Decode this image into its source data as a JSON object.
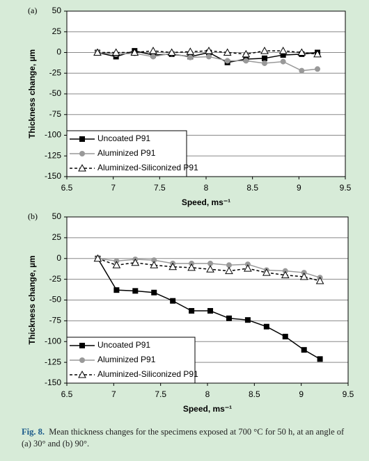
{
  "chart_data": [
    {
      "type": "line",
      "panel_label": "(a)",
      "x_label": "Speed, ms⁻¹",
      "y_label": "Thickness change, µm",
      "x": [
        6.83,
        7.03,
        7.23,
        7.43,
        7.63,
        7.83,
        8.03,
        8.23,
        8.43,
        8.63,
        8.83,
        9.03,
        9.2
      ],
      "series": [
        {
          "name": "Uncoated P91",
          "color": "#000000",
          "marker": "square",
          "dashed": false,
          "values": [
            0,
            -5,
            2,
            -3,
            -2,
            -5,
            0,
            -12,
            -8,
            -7,
            -3,
            -2,
            0
          ]
        },
        {
          "name": "Aluminized P91",
          "color": "#999999",
          "marker": "circle",
          "dashed": false,
          "values": [
            0,
            -2,
            -1,
            -5,
            -1,
            -6,
            -5,
            -10,
            -10,
            -13,
            -11,
            -22,
            -20
          ]
        },
        {
          "name": "Aluminized-Siliconized P91",
          "color": "#000000",
          "marker": "triangle",
          "dashed": true,
          "values": [
            0,
            0,
            0,
            2,
            0,
            1,
            2,
            0,
            -2,
            2,
            2,
            0,
            -2
          ]
        }
      ],
      "xlim": [
        6.5,
        9.5
      ],
      "xticks": [
        6.5,
        7,
        7.5,
        8,
        8.5,
        9,
        9.5
      ],
      "ylim": [
        -150,
        50
      ],
      "yticks": [
        50,
        25,
        0,
        -25,
        -50,
        -75,
        -100,
        -125,
        -150
      ],
      "grid": true,
      "legend": "lower left"
    },
    {
      "type": "line",
      "panel_label": "(b)",
      "x_label": "Speed, ms⁻¹",
      "y_label": "Thickness change, µm",
      "x": [
        6.83,
        7.03,
        7.23,
        7.43,
        7.63,
        7.83,
        8.03,
        8.23,
        8.43,
        8.63,
        8.83,
        9.03,
        9.2
      ],
      "series": [
        {
          "name": "Uncoated P91",
          "color": "#000000",
          "marker": "square",
          "dashed": false,
          "values": [
            0,
            -38,
            -39,
            -41,
            -51,
            -63,
            -63,
            -72,
            -74,
            -82,
            -94,
            -110,
            -121
          ]
        },
        {
          "name": "Aluminized P91",
          "color": "#999999",
          "marker": "circle",
          "dashed": false,
          "values": [
            0,
            -3,
            -1,
            -2,
            -6,
            -6,
            -6,
            -8,
            -7,
            -14,
            -15,
            -17,
            -23
          ]
        },
        {
          "name": "Aluminized-Siliconized P91",
          "color": "#000000",
          "marker": "triangle",
          "dashed": true,
          "values": [
            0,
            -8,
            -5,
            -8,
            -10,
            -11,
            -13,
            -15,
            -12,
            -17,
            -20,
            -22,
            -27
          ]
        }
      ],
      "xlim": [
        6.5,
        9.5
      ],
      "xticks": [
        6.5,
        7,
        7.5,
        8,
        8.5,
        9,
        9.5
      ],
      "ylim": [
        -150,
        50
      ],
      "yticks": [
        50,
        25,
        0,
        -25,
        -50,
        -75,
        -100,
        -125,
        -150
      ],
      "grid": true,
      "legend": "lower left"
    }
  ],
  "caption": {
    "label": "Fig. 8.",
    "text": "Mean thickness changes for the specimens exposed at 700 °C for 50 h, at an angle of (a) 30° and (b) 90°."
  }
}
